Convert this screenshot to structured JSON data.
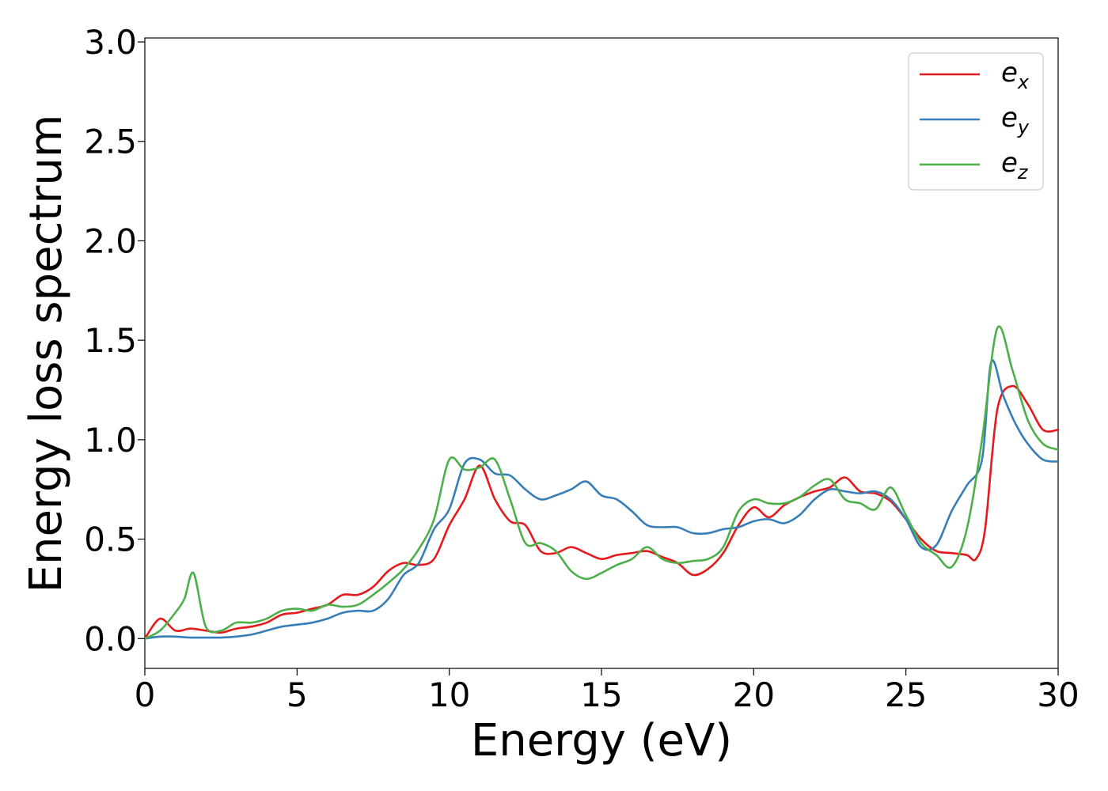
{
  "chart_data": {
    "type": "line",
    "xlabel": "Energy (eV)",
    "ylabel": "Energy loss spectrum",
    "xlim": [
      0,
      30
    ],
    "ylim": [
      -0.15,
      3.02
    ],
    "xticks": [
      "0",
      "5",
      "10",
      "15",
      "20",
      "25",
      "30"
    ],
    "yticks": [
      "0.0",
      "0.5",
      "1.0",
      "1.5",
      "2.0",
      "2.5",
      "3.0"
    ],
    "grid": false,
    "legend_position": "top-right",
    "series": [
      {
        "name": "e",
        "subscript": "x",
        "color": "#e41a1c",
        "x": [
          0,
          0.5,
          1,
          1.5,
          2,
          2.5,
          3,
          3.5,
          4,
          4.5,
          5,
          5.5,
          6,
          6.5,
          7,
          7.5,
          8,
          8.5,
          9,
          9.5,
          10,
          10.5,
          11,
          11.5,
          12,
          12.5,
          13,
          13.5,
          14,
          14.5,
          15,
          15.5,
          16,
          16.5,
          17,
          17.5,
          18,
          18.5,
          19,
          19.5,
          20,
          20.5,
          21,
          21.5,
          22,
          22.5,
          23,
          23.5,
          24,
          24.5,
          25,
          25.5,
          26,
          26.5,
          27,
          27.3,
          27.6,
          28,
          28.5,
          29,
          29.5,
          30
        ],
        "y": [
          0.0,
          0.1,
          0.04,
          0.05,
          0.04,
          0.03,
          0.05,
          0.06,
          0.08,
          0.12,
          0.13,
          0.15,
          0.17,
          0.22,
          0.22,
          0.26,
          0.34,
          0.38,
          0.37,
          0.4,
          0.57,
          0.7,
          0.87,
          0.7,
          0.59,
          0.57,
          0.44,
          0.43,
          0.46,
          0.43,
          0.4,
          0.42,
          0.43,
          0.44,
          0.41,
          0.38,
          0.32,
          0.35,
          0.43,
          0.57,
          0.66,
          0.61,
          0.67,
          0.71,
          0.74,
          0.76,
          0.81,
          0.74,
          0.73,
          0.69,
          0.6,
          0.5,
          0.44,
          0.43,
          0.42,
          0.4,
          0.55,
          1.15,
          1.27,
          1.18,
          1.05,
          1.05
        ]
      },
      {
        "name": "e",
        "subscript": "y",
        "color": "#377eb8",
        "x": [
          0,
          0.5,
          1,
          1.5,
          2,
          2.5,
          3,
          3.5,
          4,
          4.5,
          5,
          5.5,
          6,
          6.5,
          7,
          7.5,
          8,
          8.5,
          9,
          9.5,
          10,
          10.5,
          11,
          11.5,
          12,
          12.5,
          13,
          13.5,
          14,
          14.5,
          15,
          15.5,
          16,
          16.5,
          17,
          17.5,
          18,
          18.5,
          19,
          19.5,
          20,
          20.5,
          21,
          21.5,
          22,
          22.5,
          23,
          23.5,
          24,
          24.5,
          25,
          25.5,
          26,
          26.5,
          27,
          27.5,
          27.8,
          28.2,
          28.6,
          29,
          29.5,
          30
        ],
        "y": [
          0.0,
          0.01,
          0.01,
          0.005,
          0.005,
          0.005,
          0.01,
          0.02,
          0.04,
          0.06,
          0.07,
          0.08,
          0.1,
          0.13,
          0.14,
          0.14,
          0.2,
          0.32,
          0.38,
          0.55,
          0.65,
          0.88,
          0.9,
          0.83,
          0.82,
          0.75,
          0.7,
          0.72,
          0.75,
          0.79,
          0.72,
          0.7,
          0.64,
          0.57,
          0.56,
          0.56,
          0.53,
          0.53,
          0.55,
          0.56,
          0.59,
          0.6,
          0.58,
          0.62,
          0.7,
          0.75,
          0.74,
          0.73,
          0.74,
          0.7,
          0.6,
          0.46,
          0.47,
          0.64,
          0.77,
          0.9,
          1.39,
          1.22,
          1.08,
          0.98,
          0.9,
          0.89
        ]
      },
      {
        "name": "e",
        "subscript": "z",
        "color": "#4daf4a",
        "x": [
          0,
          0.5,
          1,
          1.3,
          1.6,
          2,
          2.5,
          3,
          3.5,
          4,
          4.5,
          5,
          5.5,
          6,
          6.5,
          7,
          7.5,
          8,
          8.5,
          9,
          9.5,
          10,
          10.5,
          11,
          11.5,
          12,
          12.5,
          13,
          13.5,
          14,
          14.5,
          15,
          15.5,
          16,
          16.5,
          17,
          17.5,
          18,
          18.5,
          19,
          19.5,
          20,
          20.5,
          21,
          21.5,
          22,
          22.5,
          23,
          23.5,
          24,
          24.5,
          25,
          25.5,
          26,
          26.5,
          27,
          27.5,
          28,
          28.5,
          29,
          29.5,
          30
        ],
        "y": [
          0.0,
          0.04,
          0.13,
          0.2,
          0.33,
          0.06,
          0.04,
          0.08,
          0.08,
          0.1,
          0.14,
          0.15,
          0.14,
          0.17,
          0.16,
          0.17,
          0.22,
          0.28,
          0.35,
          0.45,
          0.6,
          0.9,
          0.85,
          0.86,
          0.9,
          0.7,
          0.48,
          0.48,
          0.44,
          0.34,
          0.3,
          0.33,
          0.37,
          0.4,
          0.46,
          0.4,
          0.38,
          0.39,
          0.4,
          0.46,
          0.64,
          0.7,
          0.68,
          0.68,
          0.71,
          0.77,
          0.8,
          0.7,
          0.68,
          0.65,
          0.76,
          0.62,
          0.48,
          0.42,
          0.36,
          0.55,
          1.0,
          1.56,
          1.35,
          1.1,
          0.98,
          0.95
        ]
      }
    ]
  }
}
